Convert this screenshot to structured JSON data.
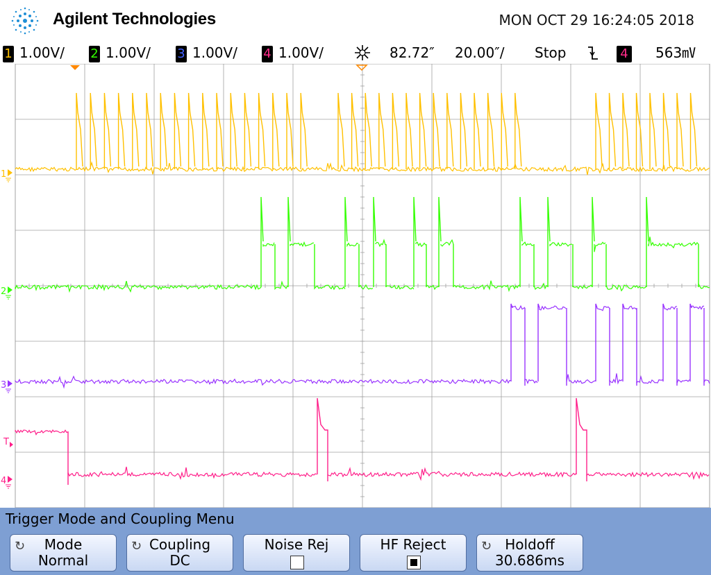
{
  "header": {
    "brand": "Agilent Technologies",
    "datetime": "MON OCT 29 16:24:05 2018"
  },
  "status": {
    "ch1": {
      "num": "1",
      "scale": "1.00V/",
      "color": "#ffc000"
    },
    "ch2": {
      "num": "2",
      "scale": "1.00V/",
      "color": "#33ff00"
    },
    "ch3": {
      "num": "3",
      "scale": "1.00V/",
      "color": "#4060ff"
    },
    "ch4": {
      "num": "4",
      "scale": "1.00V/",
      "color": "#ff2d8a"
    },
    "delay_icon": "time-reference-icon",
    "delay": "82.72″",
    "timebase": "20.00″/",
    "run_state": "Stop",
    "trigger_edge_icon": "falling-edge-icon",
    "trigger_source": "4",
    "trigger_level": "563㎷"
  },
  "waveform_colors": {
    "ch1": "#ffc000",
    "ch2": "#33ff00",
    "ch3": "#9933ff",
    "ch4": "#ff1f8a",
    "grid": "#a0a0a0"
  },
  "markers": {
    "ch1": "1",
    "ch2": "2",
    "ch3": "3",
    "ch4": "4",
    "trigger": "T"
  },
  "menu": {
    "title": "Trigger Mode and Coupling Menu",
    "softkeys": [
      {
        "line1": "Mode",
        "line2": "Normal",
        "icon": "rotate-knob-icon"
      },
      {
        "line1": "Coupling",
        "line2": "DC",
        "icon": "rotate-knob-icon"
      },
      {
        "line1": "Noise Rej",
        "checked": false
      },
      {
        "line1": "HF Reject",
        "checked": true
      },
      {
        "line1": "Holdoff",
        "line2": "30.686ms",
        "icon": "rotate-knob-icon"
      }
    ]
  }
}
